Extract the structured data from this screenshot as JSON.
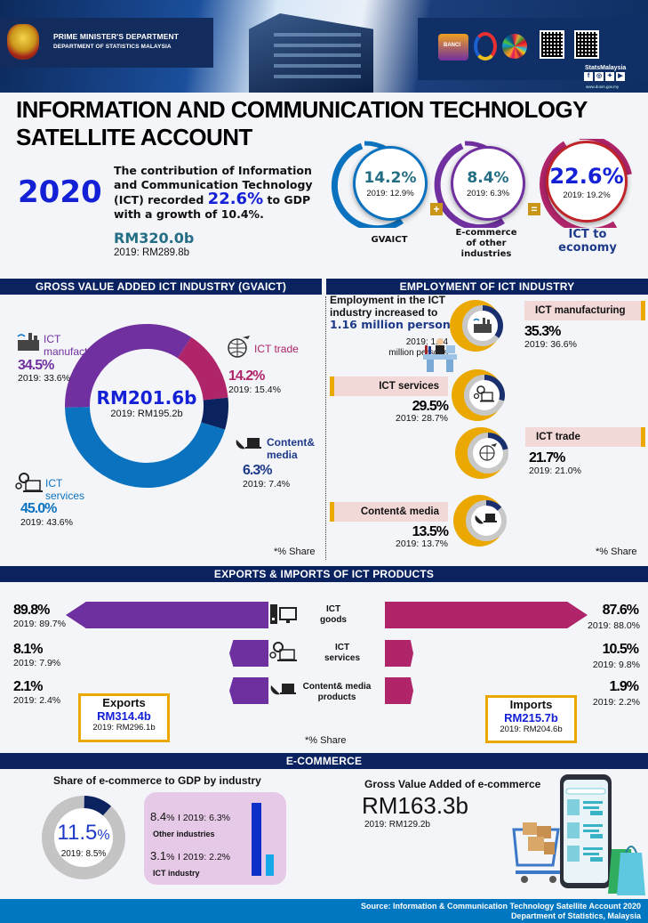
{
  "header": {
    "org_line1": "PRIME MINISTER'S DEPARTMENT",
    "org_line2": "DEPARTMENT  OF STATISTICS   MALAYSIA",
    "logo_text": "BANCI",
    "brand": "StatsMalaysia",
    "social_icons": [
      "facebook-icon",
      "instagram-icon",
      "twitter-icon",
      "youtube-icon"
    ],
    "website": "www.dosm.gov.my"
  },
  "title": {
    "line1": "INFORMATION AND COMMUNICATION TECHNOLOGY",
    "line2": "SATELLITE ACCOUNT"
  },
  "summary": {
    "year": "2020",
    "text_part1": "The contribution of Information and Communication Technology (ICT) recorded",
    "highlight": "22.6%",
    "text_part2": "to GDP with a growth of 10.4%.",
    "value": "RM320.0b",
    "prev": "2019:  RM289.8b"
  },
  "rings": [
    {
      "value": "14.2%",
      "prev": "2019: 12.9%",
      "label": "GVAICT",
      "color": "#0b72c0"
    },
    {
      "value": "8.4%",
      "prev": "2019: 6.3%",
      "label": "E-commerce of other industries",
      "color": "#7030a0"
    },
    {
      "value": "22.6%",
      "prev": "2019: 19.2%",
      "label": "ICT to economy",
      "color": "#c0242a"
    }
  ],
  "operators": {
    "plus": "+",
    "equals": "="
  },
  "gvaict": {
    "header": "GROSS  VALUE ADDED ICT INDUSTRY  (GVAICT)",
    "total": "RM201.6b",
    "total_prev": "2019:  RM195.2b",
    "share_note": "*% Share",
    "segments": [
      {
        "name": "ICT manufacturing",
        "pct": "34.5%",
        "prev": "2019: 33.6%",
        "value": 34.5,
        "color": "#7030a0",
        "icon": "factory-icon"
      },
      {
        "name": "ICT trade",
        "pct": "14.2%",
        "prev": "2019: 15.4%",
        "value": 14.2,
        "color": "#b0246a",
        "icon": "globe-plane-icon"
      },
      {
        "name": "Content& media",
        "pct": "6.3%",
        "prev": "2019: 7.4%",
        "value": 6.3,
        "color": "#0a2260",
        "icon": "satellite-laptop-icon"
      },
      {
        "name": "ICT services",
        "pct": "45.0%",
        "prev": "2019: 43.6%",
        "value": 45.0,
        "color": "#0b72c0",
        "icon": "gears-laptop-icon"
      }
    ]
  },
  "employment": {
    "header": "EMPLOYMENT  OF ICT INDUSTRY",
    "head_line1": "Employment in the ICT",
    "head_line2": "industry increased to",
    "head_value": "1.16 million  persons",
    "prev_line1": "2019: 1.14",
    "prev_line2": "million  persons",
    "share_note": "*% Share",
    "items": [
      {
        "name": "ICT manufacturing",
        "pct": "35.3%",
        "prev": "2019: 36.6%",
        "value": 35.3,
        "icon": "factory-icon"
      },
      {
        "name": "ICT services",
        "pct": "29.5%",
        "prev": "2019: 28.7%",
        "value": 29.5,
        "icon": "gears-laptop-icon"
      },
      {
        "name": "ICT trade",
        "pct": "21.7%",
        "prev": "2019: 21.0%",
        "value": 21.7,
        "icon": "globe-plane-icon"
      },
      {
        "name": "Content& media",
        "pct": "13.5%",
        "prev": "2019: 13.7%",
        "value": 13.5,
        "icon": "satellite-laptop-icon"
      }
    ]
  },
  "trade": {
    "header": "EXPORTS & IMPORTS OF ICT PRODUCTS",
    "share_note": "*% Share",
    "products": [
      {
        "label_1": "ICT",
        "label_2": "goods",
        "export_pct": "89.8%",
        "export_prev": "2019: 89.7%",
        "export_value": 89.8,
        "import_pct": "87.6%",
        "import_prev": "2019: 88.0%",
        "import_value": 87.6,
        "icon": "desktop-computer-icon"
      },
      {
        "label_1": "ICT",
        "label_2": "services",
        "export_pct": "8.1%",
        "export_prev": "2019: 7.9%",
        "export_value": 8.1,
        "import_pct": "10.5%",
        "import_prev": "2019: 9.8%",
        "import_value": 10.5,
        "icon": "gears-laptop-icon"
      },
      {
        "label_1": "Content& media",
        "label_2": "products",
        "export_pct": "2.1%",
        "export_prev": "2019: 2.4%",
        "export_value": 2.1,
        "import_pct": "1.9%",
        "import_prev": "2019: 2.2%",
        "import_value": 1.9,
        "icon": "satellite-laptop-icon"
      }
    ],
    "exports": {
      "title": "Exports",
      "value": "RM314.4b",
      "prev": "2019: RM296.1b"
    },
    "imports": {
      "title": "Imports",
      "value": "RM215.7b",
      "prev": "2019: RM204.6b"
    },
    "colors": {
      "exports": "#6e2fa0",
      "imports": "#b0246a"
    }
  },
  "ecommerce": {
    "header": "E-COMMERCE",
    "share_title": "Share of e-commerce  to GDP by industry",
    "share_total": "11.5",
    "share_unit": "%",
    "share_total_value": 11.5,
    "share_prev": "2019: 8.5%",
    "other": {
      "pct": "8.4",
      "unit": "%",
      "prev": "I 2019: 6.3%",
      "label": "Other industries",
      "value": 8.4
    },
    "ict": {
      "pct": "3.1",
      "unit": "%",
      "prev": "I 2019: 2.2%",
      "label": "ICT industry",
      "value": 3.1
    },
    "gva_title": "Gross Value  Added of e-commerce",
    "gva_value": "RM163.3b",
    "gva_prev": "2019: RM129.2b"
  },
  "footer": {
    "line1": "Source: Information & Communication Technology Satellite Account 2020",
    "line2": "Department of Statistics, Malaysia"
  }
}
